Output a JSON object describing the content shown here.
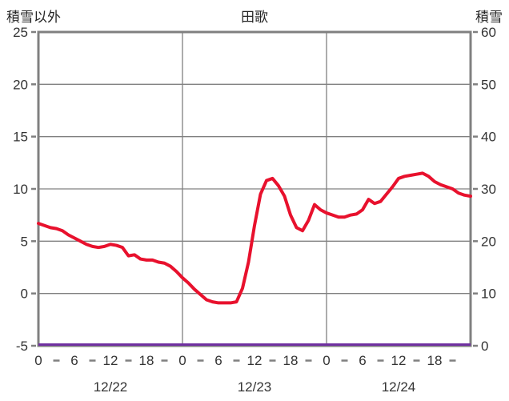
{
  "header": {
    "left_axis_title": "積雪以外",
    "chart_title": "田歌",
    "right_axis_title": "積雪"
  },
  "chart_data": {
    "type": "line",
    "title": "田歌",
    "left_axis": {
      "label": "積雪以外",
      "min": -5,
      "max": 25,
      "ticks": [
        25,
        20,
        15,
        10,
        5,
        0,
        -5
      ]
    },
    "right_axis": {
      "label": "積雪",
      "min": 0,
      "max": 60,
      "ticks": [
        60,
        50,
        40,
        30,
        20,
        10,
        0
      ]
    },
    "x_axis": {
      "min_hour": 0,
      "max_hour": 72,
      "tick_interval_hours": 6,
      "hour_tick_labels": [
        "0",
        "6",
        "12",
        "18",
        "0",
        "6",
        "12",
        "18",
        "0",
        "6",
        "12",
        "18"
      ],
      "day_boundary_hours": [
        24,
        48
      ],
      "date_labels": [
        "12/22",
        "12/23",
        "12/24"
      ],
      "date_label_center_hours": [
        12,
        36,
        60
      ]
    },
    "grid": true,
    "colors": {
      "red_series": "#e8112d",
      "purple_series": "#7030a0",
      "frame_gray": "#808080"
    },
    "series": [
      {
        "id": "red-line",
        "axis": "left",
        "color": "#e8112d",
        "hour_step": 1,
        "values": [
          6.7,
          6.5,
          6.3,
          6.2,
          6.0,
          5.6,
          5.3,
          5.0,
          4.7,
          4.5,
          4.4,
          4.5,
          4.7,
          4.6,
          4.4,
          3.6,
          3.7,
          3.3,
          3.2,
          3.2,
          3.0,
          2.9,
          2.6,
          2.1,
          1.5,
          1.0,
          0.4,
          -0.1,
          -0.6,
          -0.8,
          -0.9,
          -0.9,
          -0.9,
          -0.8,
          0.5,
          3.0,
          6.5,
          9.5,
          10.8,
          11.0,
          10.3,
          9.3,
          7.5,
          6.3,
          6.0,
          7.0,
          8.5,
          8.0,
          7.7,
          7.5,
          7.3,
          7.3,
          7.5,
          7.6,
          8.0,
          9.0,
          8.6,
          8.8,
          9.5,
          10.2,
          11.0,
          11.2,
          11.3,
          11.4,
          11.5,
          11.2,
          10.7,
          10.4,
          10.2,
          10.0,
          9.6,
          9.4,
          9.3
        ]
      },
      {
        "id": "purple-line",
        "axis": "right",
        "color": "#7030a0",
        "constant_value": 0
      }
    ]
  }
}
